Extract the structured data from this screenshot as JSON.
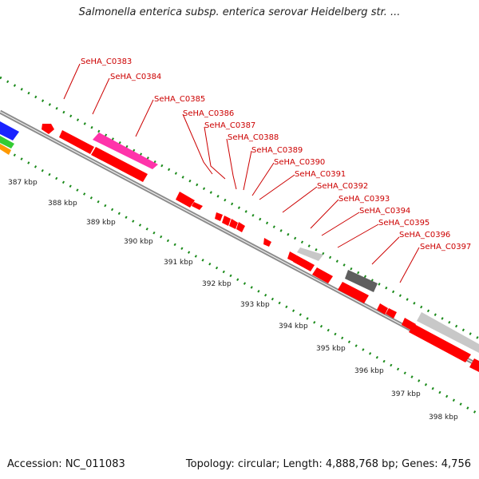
{
  "title": "Salmonella enterica subsp. enterica serovar Heidelberg str. ...",
  "footer": {
    "accession": "Accession: NC_011083",
    "topology": "Topology: circular; Length: 4,888,768 bp; Genes: 4,756"
  },
  "colors": {
    "gene_default": "#ff0000",
    "gene_pink": "#ff33aa",
    "gene_light_gray": "#c8c8c8",
    "gene_dark_gray": "#5e5e5e",
    "backbone": "#888888",
    "tick": "#1a8a1a",
    "label": "#cc0000"
  },
  "gene_labels": [
    "SeHA_C0383",
    "SeHA_C0384",
    "SeHA_C0385",
    "SeHA_C0386",
    "SeHA_C0387",
    "SeHA_C0388",
    "SeHA_C0389",
    "SeHA_C0390",
    "SeHA_C0391",
    "SeHA_C0392",
    "SeHA_C0393",
    "SeHA_C0394",
    "SeHA_C0395",
    "SeHA_C0396",
    "SeHA_C0397"
  ],
  "kbp_labels": [
    "387 kbp",
    "388 kbp",
    "389 kbp",
    "390 kbp",
    "391 kbp",
    "392 kbp",
    "393 kbp",
    "394 kbp",
    "395 kbp",
    "396 kbp",
    "397 kbp",
    "398 kbp"
  ]
}
